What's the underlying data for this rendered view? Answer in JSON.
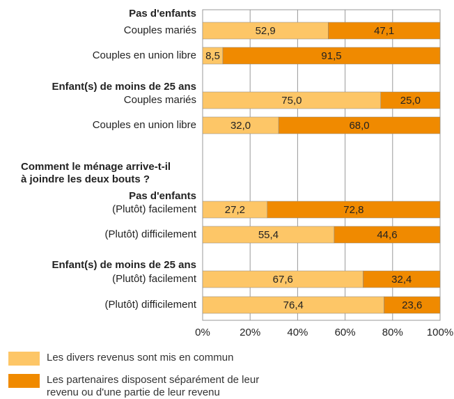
{
  "chart_data": {
    "type": "bar",
    "orientation": "horizontal",
    "stacked": true,
    "group_titles": [
      "Pas d'enfants",
      "Enfant(s) de moins de 25 ans",
      "Pas d'enfants",
      "Enfant(s) de moins de 25 ans"
    ],
    "section_title": [
      "Comment le ménage arrive-t-il",
      "à joindre les deux bouts ?"
    ],
    "categories": [
      "Couples mariés",
      "Couples en union libre",
      "Couples mariés",
      "Couples en union libre",
      "(Plutôt) facilement",
      "(Plutôt) difficilement",
      "(Plutôt) facilement",
      "(Plutôt) difficilement"
    ],
    "series": [
      {
        "name": "Les divers revenus sont mis en commun",
        "color": "#fdc667",
        "values": [
          52.9,
          8.5,
          75.0,
          32.0,
          27.2,
          55.4,
          67.6,
          76.4
        ],
        "value_labels": [
          "52,9",
          "8,5",
          "75,0",
          "32,0",
          "27,2",
          "55,4",
          "67,6",
          "76,4"
        ]
      },
      {
        "name": "Les partenaires disposent séparément de leur revenu ou d'une partie de leur revenu",
        "color": "#f08a00",
        "values": [
          47.1,
          91.5,
          25.0,
          68.0,
          72.8,
          44.6,
          32.4,
          23.6
        ],
        "value_labels": [
          "47,1",
          "91,5",
          "25,0",
          "68,0",
          "72,8",
          "44,6",
          "32,4",
          "23,6"
        ]
      }
    ],
    "xlim": [
      0,
      100
    ],
    "xticks": [
      {
        "value": 0,
        "label": "0%"
      },
      {
        "value": 20,
        "label": "20%"
      },
      {
        "value": 40,
        "label": "40%"
      },
      {
        "value": 60,
        "label": "60%"
      },
      {
        "value": 80,
        "label": "80%"
      },
      {
        "value": 100,
        "label": "100%"
      }
    ],
    "grid": true
  }
}
